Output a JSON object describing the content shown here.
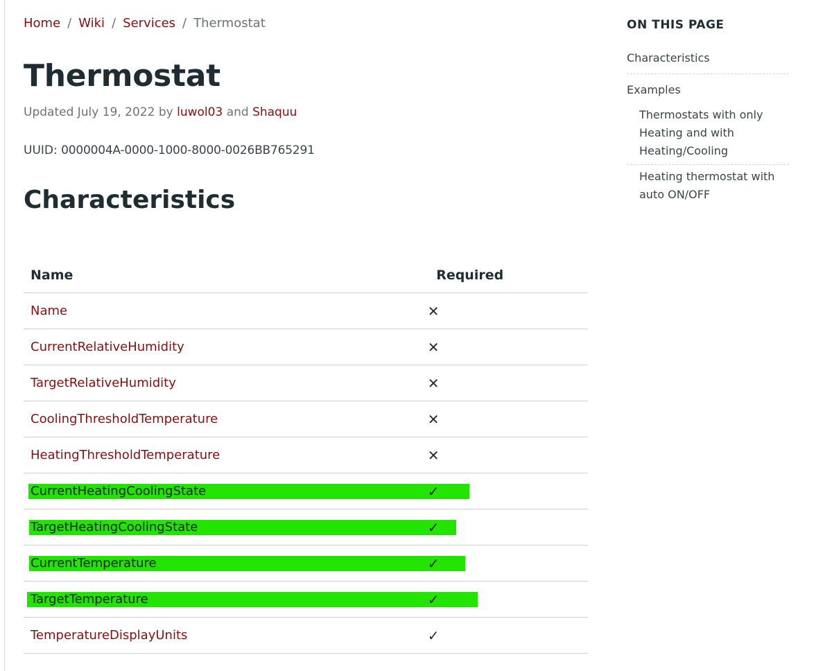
{
  "breadcrumb": {
    "items": [
      "Home",
      "Wiki",
      "Services"
    ],
    "separator": "/",
    "current": "Thermostat"
  },
  "page": {
    "title": "Thermostat",
    "updated_prefix": "Updated July 19, 2022 by",
    "author1": "luwol03",
    "and": "and",
    "author2": "Shaquu",
    "uuid_label": "UUID:",
    "uuid_value": "0000004A-0000-1000-8000-0026BB765291"
  },
  "characteristics": {
    "heading": "Characteristics",
    "columns": [
      "Name",
      "Required"
    ],
    "rows": [
      {
        "name": "Name",
        "required": "✕",
        "highlighted": false
      },
      {
        "name": "CurrentRelativeHumidity",
        "required": "✕",
        "highlighted": false
      },
      {
        "name": "TargetRelativeHumidity",
        "required": "✕",
        "highlighted": false
      },
      {
        "name": "CoolingThresholdTemperature",
        "required": "✕",
        "highlighted": false
      },
      {
        "name": "HeatingThresholdTemperature",
        "required": "✕",
        "highlighted": false
      },
      {
        "name": "CurrentHeatingCoolingState",
        "required": "✓",
        "highlighted": true
      },
      {
        "name": "TargetHeatingCoolingState",
        "required": "✓",
        "highlighted": true
      },
      {
        "name": "CurrentTemperature",
        "required": "✓",
        "highlighted": true
      },
      {
        "name": "TargetTemperature",
        "required": "✓",
        "highlighted": true
      },
      {
        "name": "TemperatureDisplayUnits",
        "required": "✓",
        "highlighted": false
      }
    ]
  },
  "toc": {
    "title": "ON THIS PAGE",
    "items": [
      {
        "label": "Characteristics"
      },
      {
        "label": "Examples"
      },
      {
        "label": "Thermostats with only Heating and with Heating/Cooling"
      },
      {
        "label": "Heating thermostat with auto ON/OFF"
      }
    ]
  },
  "colors": {
    "link": "#8b0d0d",
    "highlight": "#22e400",
    "heading": "#1f2d33",
    "muted": "#6b7378"
  }
}
